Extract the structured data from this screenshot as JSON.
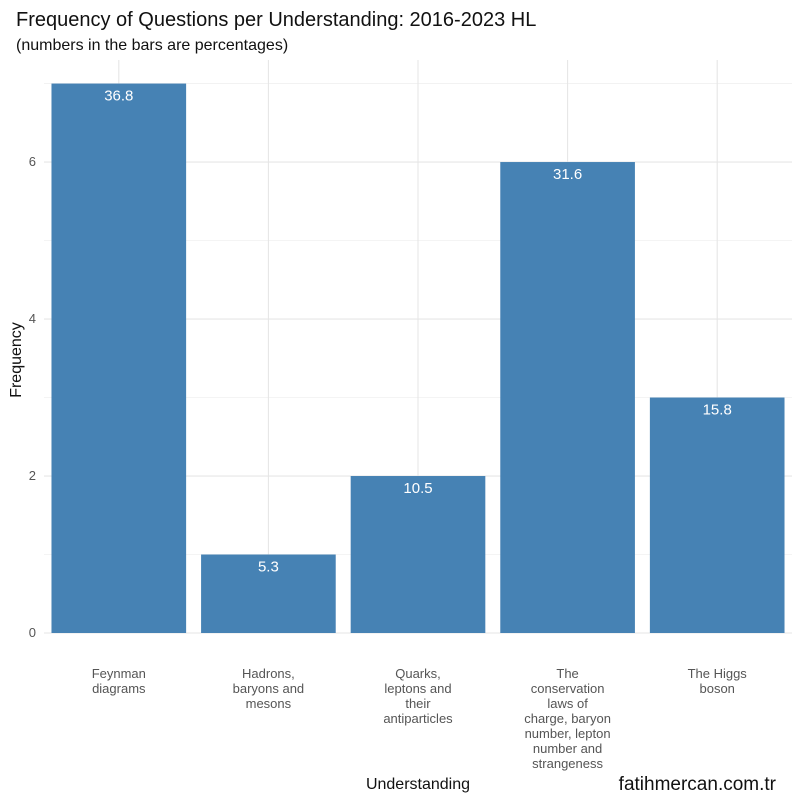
{
  "chart_data": {
    "type": "bar",
    "title": "Frequency of Questions per Understanding: 2016-2023 HL",
    "subtitle": "(numbers in the bars are percentages)",
    "xlabel": "Understanding",
    "ylabel": "Frequency",
    "ylim": [
      0,
      7.3
    ],
    "yticks": [
      0,
      2,
      4,
      6
    ],
    "grid": true,
    "bar_color": "#4682b4",
    "categories": [
      [
        "Feynman",
        "diagrams"
      ],
      [
        "Hadrons,",
        "baryons and",
        "mesons"
      ],
      [
        "Quarks,",
        "leptons and",
        "their",
        "antiparticles"
      ],
      [
        "The",
        "conservation",
        "laws of",
        "charge, baryon",
        "number, lepton",
        "number and",
        "strangeness"
      ],
      [
        "The Higgs",
        "boson"
      ]
    ],
    "values": [
      7,
      1,
      2,
      6,
      3
    ],
    "percent_labels": [
      "36.8",
      "5.3",
      "10.5",
      "31.6",
      "15.8"
    ]
  },
  "watermark": "fatihmercan.com.tr"
}
